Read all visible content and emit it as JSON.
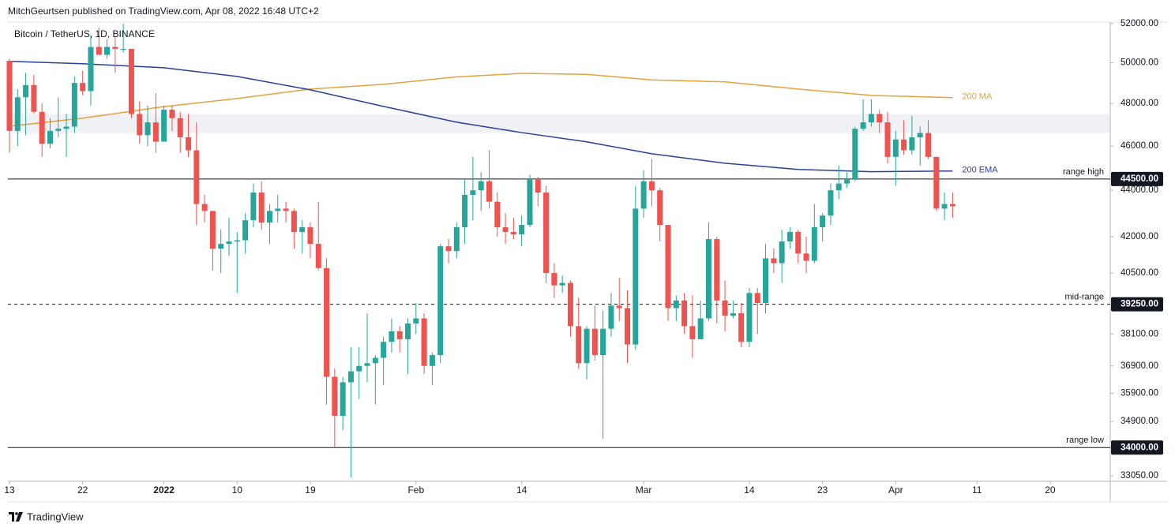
{
  "header": {
    "published": "MitchGeurtsen published on TradingView.com, Apr 08, 2022 16:48 UTC+2"
  },
  "footer": {
    "brand": "TradingView"
  },
  "chart_data": {
    "type": "candlestick",
    "title": "Bitcoin / TetherUS, 1D, BINANCE",
    "x": [
      "2021-12-13",
      "2021-12-14",
      "2021-12-15",
      "2021-12-16",
      "2021-12-17",
      "2021-12-18",
      "2021-12-19",
      "2021-12-20",
      "2021-12-21",
      "2021-12-22",
      "2021-12-23",
      "2021-12-24",
      "2021-12-25",
      "2021-12-26",
      "2021-12-27",
      "2021-12-28",
      "2021-12-29",
      "2021-12-30",
      "2021-12-31",
      "2022-01-01",
      "2022-01-02",
      "2022-01-03",
      "2022-01-04",
      "2022-01-05",
      "2022-01-06",
      "2022-01-07",
      "2022-01-08",
      "2022-01-09",
      "2022-01-10",
      "2022-01-11",
      "2022-01-12",
      "2022-01-13",
      "2022-01-14",
      "2022-01-15",
      "2022-01-16",
      "2022-01-17",
      "2022-01-18",
      "2022-01-19",
      "2022-01-20",
      "2022-01-21",
      "2022-01-22",
      "2022-01-23",
      "2022-01-24",
      "2022-01-25",
      "2022-01-26",
      "2022-01-27",
      "2022-01-28",
      "2022-01-29",
      "2022-01-30",
      "2022-01-31",
      "2022-02-01",
      "2022-02-02",
      "2022-02-03",
      "2022-02-04",
      "2022-02-05",
      "2022-02-06",
      "2022-02-07",
      "2022-02-08",
      "2022-02-09",
      "2022-02-10",
      "2022-02-11",
      "2022-02-12",
      "2022-02-13",
      "2022-02-14",
      "2022-02-15",
      "2022-02-16",
      "2022-02-17",
      "2022-02-18",
      "2022-02-19",
      "2022-02-20",
      "2022-02-21",
      "2022-02-22",
      "2022-02-23",
      "2022-02-24",
      "2022-02-25",
      "2022-02-26",
      "2022-02-27",
      "2022-02-28",
      "2022-03-01",
      "2022-03-02",
      "2022-03-03",
      "2022-03-04",
      "2022-03-05",
      "2022-03-06",
      "2022-03-07",
      "2022-03-08",
      "2022-03-09",
      "2022-03-10",
      "2022-03-11",
      "2022-03-12",
      "2022-03-13",
      "2022-03-14",
      "2022-03-15",
      "2022-03-16",
      "2022-03-17",
      "2022-03-18",
      "2022-03-19",
      "2022-03-20",
      "2022-03-21",
      "2022-03-22",
      "2022-03-23",
      "2022-03-24",
      "2022-03-25",
      "2022-03-26",
      "2022-03-27",
      "2022-03-28",
      "2022-03-29",
      "2022-03-30",
      "2022-03-31",
      "2022-04-01",
      "2022-04-02",
      "2022-04-03",
      "2022-04-04",
      "2022-04-05",
      "2022-04-06",
      "2022-04-07",
      "2022-04-08"
    ],
    "open": [
      50100,
      46700,
      48300,
      48900,
      47600,
      46100,
      46700,
      46800,
      46900,
      49000,
      48600,
      50800,
      50400,
      50800,
      50700,
      50700,
      47500,
      46500,
      47100,
      46200,
      47700,
      47300,
      46400,
      45800,
      43400,
      43100,
      41500,
      41700,
      41800,
      41850,
      42700,
      43900,
      42600,
      43100,
      43200,
      43100,
      42200,
      42400,
      41700,
      40700,
      36500,
      35100,
      36300,
      36700,
      36900,
      37000,
      37200,
      37800,
      38200,
      37900,
      38500,
      38700,
      36900,
      37300,
      41600,
      41400,
      42400,
      43800,
      44000,
      44400,
      43500,
      42400,
      42200,
      42100,
      42500,
      44500,
      43900,
      40500,
      40000,
      40100,
      38400,
      37000,
      38300,
      37300,
      38300,
      39200,
      39100,
      37700,
      43200,
      44400,
      44000,
      42500,
      39100,
      39400,
      38400,
      37900,
      38700,
      41900,
      39400,
      38800,
      38900,
      37800,
      39700,
      39300,
      41100,
      40900,
      41800,
      42200,
      41300,
      41000,
      42400,
      42900,
      44000,
      44300,
      44500,
      46800,
      47100,
      47500,
      47100,
      45500,
      46300,
      45800,
      46400,
      46600,
      45500,
      43200,
      43400
    ],
    "high": [
      50200,
      48700,
      49500,
      49400,
      48000,
      47300,
      48300,
      47500,
      49300,
      49600,
      51400,
      51800,
      51200,
      51300,
      52000,
      50700,
      48100,
      47900,
      48500,
      47900,
      47900,
      47600,
      47500,
      47100,
      43800,
      43100,
      42300,
      42800,
      42200,
      43000,
      44300,
      44400,
      43400,
      43800,
      43500,
      43200,
      42700,
      42600,
      43500,
      41100,
      36800,
      36500,
      37600,
      37600,
      38900,
      37300,
      38000,
      38700,
      38400,
      38700,
      39300,
      38900,
      37400,
      41700,
      41900,
      42600,
      44500,
      45500,
      44800,
      45800,
      43900,
      43000,
      42800,
      42900,
      44700,
      44600,
      44200,
      40900,
      40400,
      40200,
      39500,
      38400,
      39200,
      39000,
      39700,
      40300,
      39800,
      44200,
      44900,
      45400,
      44100,
      42500,
      39600,
      39700,
      39600,
      39400,
      42600,
      42000,
      40200,
      39400,
      39300,
      39900,
      39900,
      41700,
      41500,
      42300,
      42400,
      42300,
      42000,
      43400,
      43000,
      44300,
      45100,
      44800,
      46900,
      48200,
      48200,
      47700,
      47600,
      46700,
      47200,
      47400,
      46900,
      47200,
      45500,
      43900,
      43900
    ],
    "low": [
      45700,
      46000,
      46500,
      47500,
      45500,
      45900,
      46400,
      45500,
      46600,
      48400,
      47900,
      50400,
      50200,
      49500,
      50500,
      47300,
      46100,
      46000,
      45700,
      46200,
      46700,
      45700,
      45500,
      42500,
      42600,
      40600,
      40500,
      41200,
      39700,
      41300,
      42400,
      42300,
      41700,
      42600,
      42600,
      41500,
      41300,
      41100,
      40600,
      35500,
      34000,
      34600,
      33000,
      35700,
      36300,
      35500,
      36200,
      37400,
      37400,
      36600,
      38100,
      36600,
      36200,
      37000,
      40900,
      41100,
      41700,
      42700,
      43100,
      43200,
      42000,
      41700,
      41900,
      41600,
      42400,
      43300,
      40100,
      39500,
      39700,
      38000,
      36800,
      36400,
      37100,
      34300,
      38000,
      38600,
      37000,
      37500,
      42800,
      43300,
      41800,
      38600,
      38600,
      38100,
      37200,
      37900,
      38600,
      38500,
      38200,
      38700,
      37600,
      37600,
      38100,
      38900,
      40500,
      40100,
      41500,
      40900,
      40500,
      40900,
      41800,
      42500,
      43600,
      44100,
      44400,
      46700,
      46900,
      46600,
      45200,
      44200,
      45600,
      45600,
      45100,
      45400,
      43100,
      42700,
      42800
    ],
    "close": [
      46700,
      48300,
      48900,
      47600,
      46100,
      46700,
      46800,
      46900,
      49000,
      48600,
      50800,
      50400,
      50800,
      50700,
      50700,
      47500,
      46500,
      47100,
      46200,
      47700,
      47300,
      46400,
      45800,
      43400,
      43100,
      41500,
      41700,
      41800,
      41850,
      42700,
      43900,
      42600,
      43100,
      43200,
      43100,
      42200,
      42400,
      41700,
      40700,
      36500,
      35100,
      36300,
      36700,
      36900,
      37000,
      37200,
      37800,
      38200,
      37900,
      38500,
      38700,
      36900,
      37300,
      41600,
      41400,
      42400,
      43800,
      44000,
      44400,
      43500,
      42400,
      42200,
      42100,
      42500,
      44500,
      43900,
      40500,
      40000,
      40100,
      38400,
      37000,
      38300,
      37300,
      38300,
      39200,
      39100,
      37700,
      43200,
      44400,
      44000,
      42500,
      39100,
      39400,
      38400,
      37900,
      38700,
      41900,
      39400,
      38800,
      38900,
      37800,
      39700,
      39300,
      41100,
      40900,
      41800,
      42200,
      41300,
      41000,
      42400,
      42900,
      44000,
      44300,
      44500,
      46800,
      47100,
      47500,
      47100,
      45500,
      46300,
      45800,
      46400,
      46600,
      45500,
      43200,
      43400,
      43300
    ],
    "up_color": "#26a69a",
    "down_color": "#ef5350",
    "lines": [
      {
        "name": "200 MA",
        "color": "#e5a23a",
        "x": [
          "2021-12-13",
          "2021-12-22",
          "2022-01-01",
          "2022-01-10",
          "2022-01-19",
          "2022-01-28",
          "2022-02-06",
          "2022-02-14",
          "2022-02-22",
          "2022-03-02",
          "2022-03-11",
          "2022-03-20",
          "2022-03-29",
          "2022-04-08"
        ],
        "values": [
          46920,
          47300,
          47850,
          48240,
          48700,
          48930,
          49300,
          49470,
          49420,
          49150,
          49050,
          48700,
          48390,
          48280
        ]
      },
      {
        "name": "200 EMA",
        "color": "#283f99",
        "x": [
          "2021-12-13",
          "2021-12-22",
          "2022-01-01",
          "2022-01-10",
          "2022-01-19",
          "2022-01-28",
          "2022-02-06",
          "2022-02-14",
          "2022-02-22",
          "2022-03-02",
          "2022-03-11",
          "2022-03-20",
          "2022-03-29",
          "2022-04-08"
        ],
        "values": [
          50070,
          49950,
          49750,
          49320,
          48660,
          47860,
          47110,
          46620,
          46190,
          45640,
          45210,
          44930,
          44830,
          44860
        ]
      }
    ],
    "levels": [
      {
        "name": "range high",
        "value": 44500,
        "value_label": "44500.00",
        "dashed": false
      },
      {
        "name": "mid-range",
        "value": 39250,
        "value_label": "39250.00",
        "dashed": true
      },
      {
        "name": "range low",
        "value": 34000,
        "value_label": "34000.00",
        "dashed": false
      }
    ],
    "zone": [
      46600,
      47500
    ],
    "zone_color": "#f0f1f4",
    "log": true,
    "xlim": [
      "2021-12-13",
      "2022-04-27"
    ],
    "xticks": [
      {
        "value": "2021-12-13",
        "label": "13"
      },
      {
        "value": "2021-12-22",
        "label": "22"
      },
      {
        "value": "2022-01-01",
        "label": "2022"
      },
      {
        "value": "2022-01-10",
        "label": "10"
      },
      {
        "value": "2022-01-19",
        "label": "19"
      },
      {
        "value": "2022-02-01",
        "label": "Feb"
      },
      {
        "value": "2022-02-14",
        "label": "14"
      },
      {
        "value": "2022-03-01",
        "label": "Mar"
      },
      {
        "value": "2022-03-14",
        "label": "14"
      },
      {
        "value": "2022-03-23",
        "label": "23"
      },
      {
        "value": "2022-04-01",
        "label": "Apr"
      },
      {
        "value": "2022-04-11",
        "label": "11"
      },
      {
        "value": "2022-04-20",
        "label": "20"
      }
    ],
    "ylim": [
      32870,
      52080
    ],
    "yticks": [
      {
        "value": 52000,
        "label": "52000.00"
      },
      {
        "value": 50000,
        "label": "50000.00"
      },
      {
        "value": 48000,
        "label": "48000.00"
      },
      {
        "value": 46000,
        "label": "46000.00"
      },
      {
        "value": 44000,
        "label": "44000.00"
      },
      {
        "value": 42000,
        "label": "42000.00"
      },
      {
        "value": 40500,
        "label": "40500.00"
      },
      {
        "value": 38100,
        "label": "38100.00"
      },
      {
        "value": 36900,
        "label": "36900.00"
      },
      {
        "value": 35900,
        "label": "35900.00"
      },
      {
        "value": 34900,
        "label": "34900.00"
      },
      {
        "value": 33050,
        "label": "33050.00"
      }
    ]
  }
}
